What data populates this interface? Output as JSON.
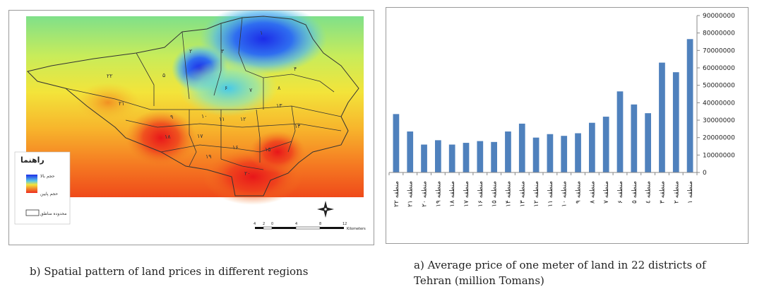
{
  "captions": {
    "map": "b) Spatial pattern of land prices in different regions",
    "chart": "a) Average price of one meter of land in 22 districts of Tehran (million Tomans)"
  },
  "map": {
    "legend": {
      "title": "راهنما",
      "high_label": "حجم بالا",
      "low_label": "حجم پایین",
      "boundary_label": "محدوده مناطق"
    },
    "scale": {
      "ticks": [
        "4",
        "2",
        "0",
        "4",
        "8",
        "12"
      ],
      "unit": "Kilometers"
    },
    "district_labels": [
      "۱",
      "۲",
      "۳",
      "۴",
      "۵",
      "۶",
      "۷",
      "۸",
      "۹",
      "۱۰",
      "۱۱",
      "۱۲",
      "۱۳",
      "۱۴",
      "۱۵",
      "۱۶",
      "۱۷",
      "۱۸",
      "۱۹",
      "۲۰",
      "۲۱",
      "۲۲"
    ],
    "colors": {
      "high": "#2030e0",
      "mid": "#f5e63a",
      "low": "#ee2a1e"
    }
  },
  "chart_data": {
    "type": "bar",
    "categories": [
      "منطقه ۲۲",
      "منطقه ۲۱",
      "منطقه ۲۰",
      "منطقه ۱۹",
      "منطقه ۱۸",
      "منطقه ۱۷",
      "منطقه ۱۶",
      "منطقه ۱۵",
      "منطقه ۱۴",
      "منطقه ۱۳",
      "منطقه ۱۲",
      "منطقه ۱۱",
      "منطقه ۱۰",
      "منطقه ۹",
      "منطقه ۸",
      "منطقه ۷",
      "منطقه ۶",
      "منطقه ۵",
      "منطقه ٤",
      "منطقه ۳",
      "منطقه ۲",
      "منطقه ۱"
    ],
    "values": [
      33500000,
      23500000,
      16000000,
      18500000,
      16000000,
      17000000,
      18000000,
      17500000,
      23500000,
      28000000,
      20000000,
      22000000,
      21000000,
      22500000,
      28500000,
      32000000,
      46500000,
      39000000,
      34000000,
      63000000,
      57500000,
      76500000
    ],
    "ylim": [
      0,
      90000000
    ],
    "yticks": [
      "0",
      "10000000",
      "20000000",
      "30000000",
      "40000000",
      "50000000",
      "60000000",
      "70000000",
      "80000000",
      "90000000"
    ],
    "bar_color": "#4f81bd",
    "grid": false,
    "title": "",
    "xlabel": "",
    "ylabel": ""
  }
}
